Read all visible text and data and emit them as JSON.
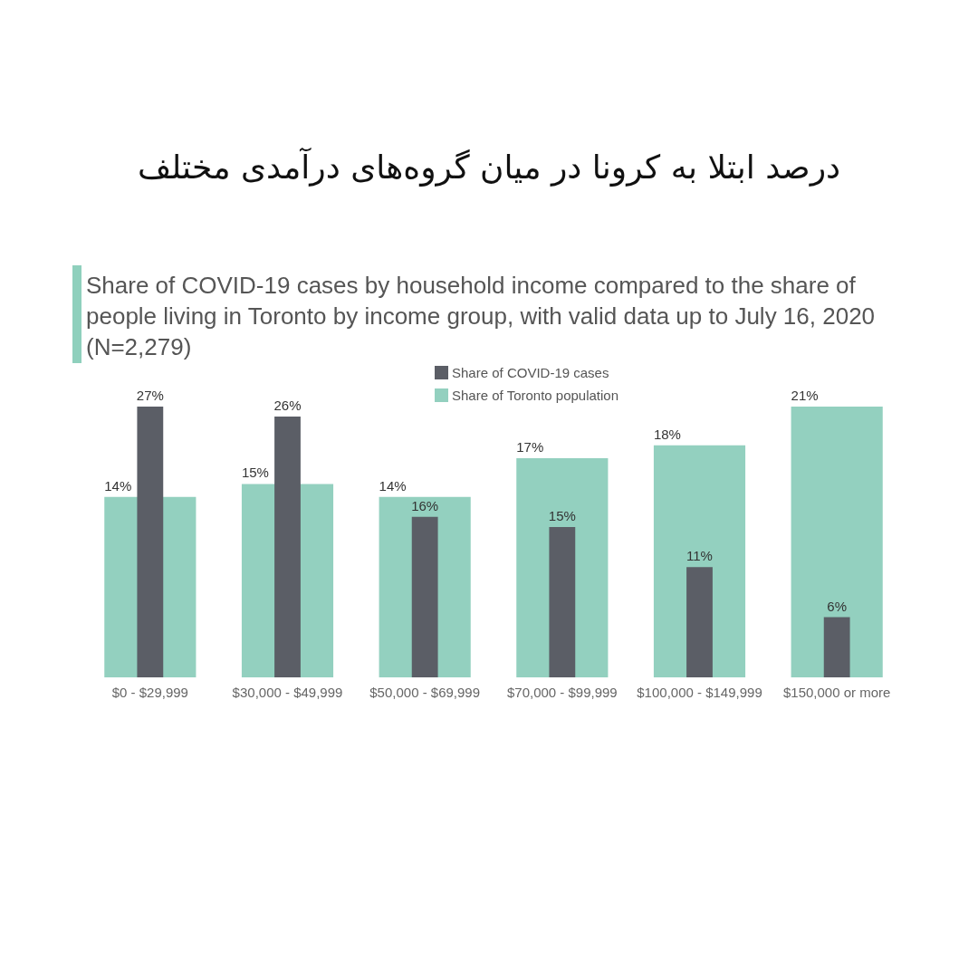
{
  "chart_data": {
    "type": "bar",
    "title": "درصد ابتلا به کرونا در میان گروه‌های درآمدی مختلف",
    "subtitle": "Share of COVID-19 cases by household income compared to the share of people living in Toronto by income group, with valid data up to July 16, 2020 (N=2,279)",
    "categories": [
      "$0 - $29,999",
      "$30,000 - $49,999",
      "$50,000 - $69,999",
      "$70,000 - $99,999",
      "$100,000 - $149,999",
      "$150,000 or more"
    ],
    "series": [
      {
        "name": "Share of COVID-19 cases",
        "color": "#5b5e66",
        "values": [
          27,
          26,
          16,
          15,
          11,
          6
        ],
        "value_labels": [
          "27%",
          "26%",
          "16%",
          "15%",
          "11%",
          "6%"
        ]
      },
      {
        "name": "Share of Toronto population",
        "color": "#93d0bf",
        "axis": "y2",
        "values": [
          14,
          15,
          14,
          17,
          18,
          21
        ],
        "value_labels": [
          "14%",
          "15%",
          "14%",
          "17%",
          "18%",
          "21%"
        ]
      }
    ],
    "legend": "top",
    "tick_labels": "x"
  }
}
